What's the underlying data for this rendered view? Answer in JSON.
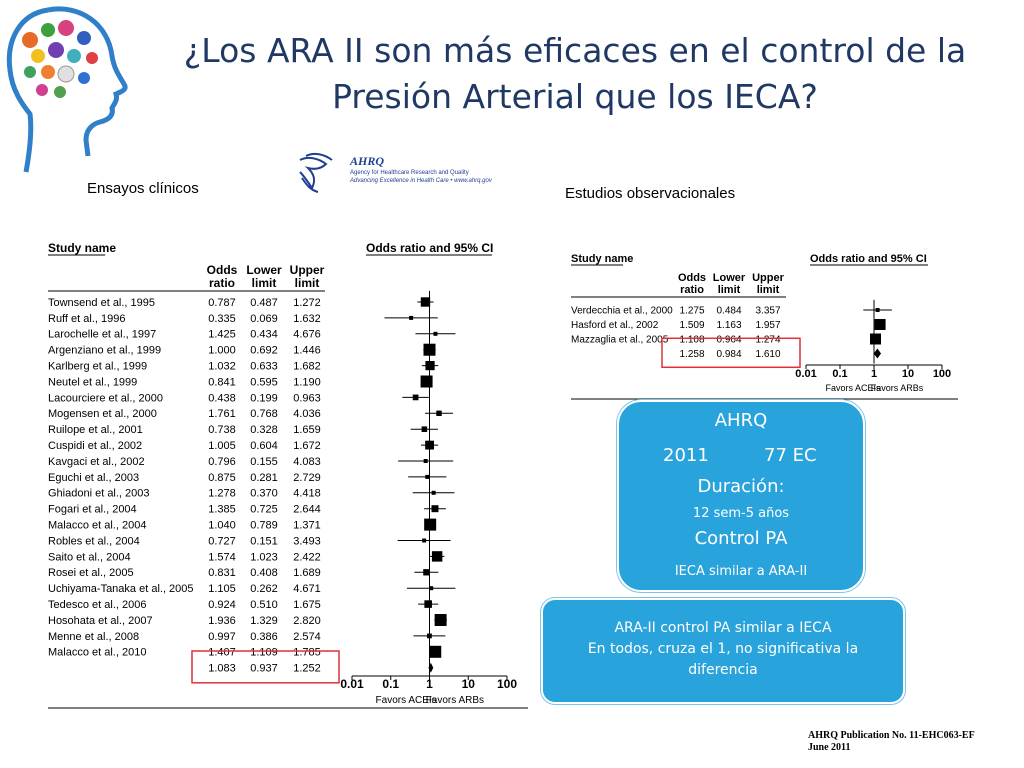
{
  "slide": {
    "title_line1": "¿Los ARA II son más eficaces en el control de la",
    "title_line2": "Presión Arterial que los IECA?",
    "label_left": "Ensayos clínicos",
    "label_right": "Estudios observacionales"
  },
  "ahrq_logo": {
    "word": "AHRQ",
    "sub1": "Agency for Healthcare Research and Quality",
    "sub2": "Advancing Excellence in Health Care • www.ahrq.gov"
  },
  "colors": {
    "title": "#1f3864",
    "box_fill": "#29a3db",
    "highlight_box": "#e0303a"
  },
  "info_box": {
    "line1": "AHRQ",
    "year": "2011",
    "trials": "77 EC",
    "line3": "Duración:",
    "line4": "12 sem-5 años",
    "line5": "Control PA",
    "line6": "IECA similar a ARA-II"
  },
  "conclusion": {
    "line1": "ARA-II control PA similar a IECA",
    "line2": "En todos, cruza el 1, no significativa la",
    "line3": "diferencia"
  },
  "publication": {
    "line1": "AHRQ Publication No. 11-EHC063-EF",
    "line2": "June 2011"
  },
  "chart_data": [
    {
      "type": "forest",
      "title": "Odds ratio and 95% CI",
      "name_header": "Study name",
      "column_headers": {
        "or": [
          "Odds",
          "ratio"
        ],
        "lower": [
          "Lower",
          "limit"
        ],
        "upper": [
          "Upper",
          "limit"
        ]
      },
      "x_scale": "log",
      "xlim": [
        0.01,
        100
      ],
      "ticks": [
        "0.01",
        "0.1",
        "1",
        "10",
        "100"
      ],
      "tick_values": [
        0.01,
        0.1,
        1,
        10,
        100
      ],
      "favors_left": "Favors ACEIs",
      "favors_right": "Favors ARBs",
      "studies": [
        {
          "name": "Townsend et al., 1995",
          "or": "0.787",
          "lower": "0.487",
          "upper": "1.272"
        },
        {
          "name": "Ruff et al., 1996",
          "or": "0.335",
          "lower": "0.069",
          "upper": "1.632"
        },
        {
          "name": "Larochelle et al., 1997",
          "or": "1.425",
          "lower": "0.434",
          "upper": "4.676"
        },
        {
          "name": "Argenziano et al., 1999",
          "or": "1.000",
          "lower": "0.692",
          "upper": "1.446"
        },
        {
          "name": "Karlberg et al., 1999",
          "or": "1.032",
          "lower": "0.633",
          "upper": "1.682"
        },
        {
          "name": "Neutel et al., 1999",
          "or": "0.841",
          "lower": "0.595",
          "upper": "1.190"
        },
        {
          "name": "Lacourciere et al., 2000",
          "or": "0.438",
          "lower": "0.199",
          "upper": "0.963"
        },
        {
          "name": "Mogensen et al., 2000",
          "or": "1.761",
          "lower": "0.768",
          "upper": "4.036"
        },
        {
          "name": "Ruilope et al., 2001",
          "or": "0.738",
          "lower": "0.328",
          "upper": "1.659"
        },
        {
          "name": "Cuspidi et al., 2002",
          "or": "1.005",
          "lower": "0.604",
          "upper": "1.672"
        },
        {
          "name": "Kavgaci et al., 2002",
          "or": "0.796",
          "lower": "0.155",
          "upper": "4.083"
        },
        {
          "name": "Eguchi et al., 2003",
          "or": "0.875",
          "lower": "0.281",
          "upper": "2.729"
        },
        {
          "name": "Ghiadoni et al., 2003",
          "or": "1.278",
          "lower": "0.370",
          "upper": "4.418"
        },
        {
          "name": "Fogari et al., 2004",
          "or": "1.385",
          "lower": "0.725",
          "upper": "2.644"
        },
        {
          "name": "Malacco et al., 2004",
          "or": "1.040",
          "lower": "0.789",
          "upper": "1.371"
        },
        {
          "name": "Robles et al., 2004",
          "or": "0.727",
          "lower": "0.151",
          "upper": "3.493"
        },
        {
          "name": "Saito et al., 2004",
          "or": "1.574",
          "lower": "1.023",
          "upper": "2.422"
        },
        {
          "name": "Rosei et al., 2005",
          "or": "0.831",
          "lower": "0.408",
          "upper": "1.689"
        },
        {
          "name": "Uchiyama-Tanaka et al., 2005",
          "or": "1.105",
          "lower": "0.262",
          "upper": "4.671"
        },
        {
          "name": "Tedesco et al., 2006",
          "or": "0.924",
          "lower": "0.510",
          "upper": "1.675"
        },
        {
          "name": "Hosohata et al., 2007",
          "or": "1.936",
          "lower": "1.329",
          "upper": "2.820"
        },
        {
          "name": "Menne et al., 2008",
          "or": "0.997",
          "lower": "0.386",
          "upper": "2.574"
        },
        {
          "name": "Malacco et al., 2010",
          "or": "1.407",
          "lower": "1.109",
          "upper": "1.785"
        }
      ],
      "pooled": {
        "or": "1.083",
        "lower": "0.937",
        "upper": "1.252"
      }
    },
    {
      "type": "forest",
      "title": "Odds ratio and 95% CI",
      "name_header": "Study name",
      "column_headers": {
        "or": [
          "Odds",
          "ratio"
        ],
        "lower": [
          "Lower",
          "limit"
        ],
        "upper": [
          "Upper",
          "limit"
        ]
      },
      "x_scale": "log",
      "xlim": [
        0.01,
        100
      ],
      "ticks": [
        "0.01",
        "0.1",
        "1",
        "10",
        "100"
      ],
      "tick_values": [
        0.01,
        0.1,
        1,
        10,
        100
      ],
      "favors_left": "Favors ACEIs",
      "favors_right": "Favors ARBs",
      "studies": [
        {
          "name": "Verdecchia et al., 2000",
          "or": "1.275",
          "lower": "0.484",
          "upper": "3.357"
        },
        {
          "name": "Hasford et al., 2002",
          "or": "1.509",
          "lower": "1.163",
          "upper": "1.957"
        },
        {
          "name": "Mazzaglia et al., 2005",
          "or": "1.108",
          "lower": "0.964",
          "upper": "1.274"
        }
      ],
      "pooled": {
        "or": "1.258",
        "lower": "0.984",
        "upper": "1.610"
      }
    }
  ]
}
